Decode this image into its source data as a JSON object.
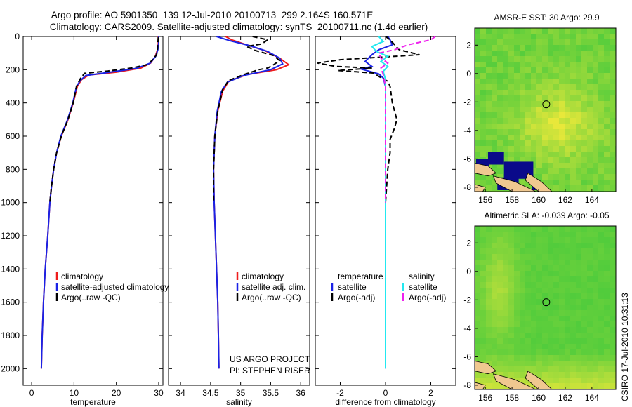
{
  "figure": {
    "title_line1": "Argo profile: AO 5901350_139 12-Jul-2010 20100713_299 2.164S 160.571E",
    "title_line2": "Climatology: CARS2009. Satellite-adjusted climatology: synTS_20100711.nc (1.4d earlier)",
    "credit_line1": "US ARGO PROJECT",
    "credit_line2": "PI: STEPHEN RISER",
    "side_stamp": "CSIRO 17-Jul-2010 10:31:13"
  },
  "colors": {
    "climatology": "#ee1c1c",
    "satellite_adjusted": "#1a22e6",
    "argo": "#000000",
    "satellite_salinity": "#22e8f0",
    "argo_adj_salinity": "#ee22ee",
    "map_ocean": "#3cc83c",
    "map_warm": "#e8e83a",
    "map_deep": "#0a0a8a",
    "map_land": "#f0c890"
  },
  "chart_data": [
    {
      "id": "temperature",
      "type": "line",
      "xlabel": "temperature",
      "ylabel": "",
      "xlim": [
        -2,
        31
      ],
      "ylim": [
        2100,
        0
      ],
      "y_reversed": true,
      "xticks": [
        0,
        10,
        20,
        30
      ],
      "yticks": [
        0,
        200,
        400,
        600,
        800,
        1000,
        1200,
        1400,
        1600,
        1800,
        2000
      ],
      "legend": {
        "location": "lower-right",
        "entries": [
          {
            "label": "climatology",
            "series": "climatology"
          },
          {
            "label": "satellite-adjusted climatology",
            "series": "satellite_adjusted"
          },
          {
            "label": "Argo(..raw -QC)",
            "series": "argo"
          }
        ]
      },
      "series": [
        {
          "name": "climatology",
          "color_key": "climatology",
          "dash": "solid",
          "points": [
            [
              29.9,
              0
            ],
            [
              29.9,
              40
            ],
            [
              29.7,
              80
            ],
            [
              29.2,
              120
            ],
            [
              28.1,
              160
            ],
            [
              25.8,
              190
            ],
            [
              20.0,
              215
            ],
            [
              13.5,
              232
            ],
            [
              11.8,
              260
            ],
            [
              10.8,
              300
            ],
            [
              9.8,
              400
            ],
            [
              8.6,
              500
            ],
            [
              7.0,
              600
            ],
            [
              5.9,
              700
            ],
            [
              5.2,
              800
            ],
            [
              4.7,
              900
            ],
            [
              4.3,
              1000
            ],
            [
              3.8,
              1200
            ],
            [
              3.2,
              1400
            ],
            [
              2.8,
              1600
            ],
            [
              2.5,
              1800
            ],
            [
              2.3,
              2000
            ]
          ]
        },
        {
          "name": "satellite_adjusted",
          "color_key": "satellite_adjusted",
          "dash": "solid",
          "points": [
            [
              30.0,
              0
            ],
            [
              30.0,
              40
            ],
            [
              29.8,
              80
            ],
            [
              29.3,
              120
            ],
            [
              28.0,
              160
            ],
            [
              24.8,
              192
            ],
            [
              18.5,
              215
            ],
            [
              12.8,
              235
            ],
            [
              11.5,
              265
            ],
            [
              10.6,
              300
            ],
            [
              9.7,
              400
            ],
            [
              8.5,
              500
            ],
            [
              6.9,
              600
            ],
            [
              5.9,
              700
            ],
            [
              5.2,
              800
            ],
            [
              4.7,
              900
            ],
            [
              4.3,
              1000
            ],
            [
              3.8,
              1200
            ],
            [
              3.2,
              1400
            ],
            [
              2.8,
              1600
            ],
            [
              2.5,
              1800
            ],
            [
              2.3,
              2000
            ]
          ]
        },
        {
          "name": "argo",
          "color_key": "argo",
          "dash": "dash",
          "points": [
            [
              29.9,
              5
            ],
            [
              29.8,
              40
            ],
            [
              29.7,
              80
            ],
            [
              29.5,
              110
            ],
            [
              28.6,
              140
            ],
            [
              27.3,
              170
            ],
            [
              23.5,
              190
            ],
            [
              18.0,
              208
            ],
            [
              12.5,
              222
            ],
            [
              11.6,
              250
            ],
            [
              10.6,
              300
            ],
            [
              9.8,
              400
            ],
            [
              8.6,
              500
            ],
            [
              7.0,
              600
            ],
            [
              5.9,
              700
            ],
            [
              5.2,
              800
            ],
            [
              4.7,
              900
            ],
            [
              4.3,
              1000
            ]
          ]
        }
      ]
    },
    {
      "id": "salinity",
      "type": "line",
      "xlabel": "salinity",
      "ylabel": "",
      "xlim": [
        33.8,
        36.15
      ],
      "ylim": [
        2100,
        0
      ],
      "y_reversed": true,
      "xticks": [
        34,
        34.5,
        35,
        35.5,
        36
      ],
      "yticks": [],
      "legend": {
        "location": "lower-right",
        "entries": [
          {
            "label": "climatology",
            "series": "climatology"
          },
          {
            "label": "satellite adj. clim.",
            "series": "satellite_adjusted"
          },
          {
            "label": "Argo(..raw -QC)",
            "series": "argo"
          }
        ]
      },
      "series": [
        {
          "name": "climatology",
          "color_key": "climatology",
          "dash": "solid",
          "points": [
            [
              34.75,
              0
            ],
            [
              34.85,
              20
            ],
            [
              35.1,
              50
            ],
            [
              35.4,
              85
            ],
            [
              35.65,
              130
            ],
            [
              35.8,
              170
            ],
            [
              35.6,
              200
            ],
            [
              35.1,
              230
            ],
            [
              34.8,
              270
            ],
            [
              34.7,
              330
            ],
            [
              34.62,
              450
            ],
            [
              34.57,
              600
            ],
            [
              34.55,
              800
            ],
            [
              34.56,
              1000
            ],
            [
              34.58,
              1200
            ],
            [
              34.6,
              1400
            ],
            [
              34.62,
              1600
            ],
            [
              34.63,
              1800
            ],
            [
              34.64,
              2000
            ]
          ]
        },
        {
          "name": "satellite_adjusted",
          "color_key": "satellite_adjusted",
          "dash": "solid",
          "points": [
            [
              34.6,
              0
            ],
            [
              34.82,
              25
            ],
            [
              35.15,
              55
            ],
            [
              35.45,
              90
            ],
            [
              35.65,
              130
            ],
            [
              35.7,
              165
            ],
            [
              35.5,
              200
            ],
            [
              35.05,
              235
            ],
            [
              34.78,
              275
            ],
            [
              34.68,
              330
            ],
            [
              34.61,
              450
            ],
            [
              34.57,
              600
            ],
            [
              34.55,
              800
            ],
            [
              34.56,
              1000
            ],
            [
              34.58,
              1200
            ],
            [
              34.6,
              1400
            ],
            [
              34.62,
              1600
            ],
            [
              34.63,
              1800
            ],
            [
              34.64,
              2000
            ]
          ]
        },
        {
          "name": "argo",
          "color_key": "argo",
          "dash": "dash",
          "points": [
            [
              35.2,
              0
            ],
            [
              35.45,
              20
            ],
            [
              35.35,
              45
            ],
            [
              35.1,
              60
            ],
            [
              35.25,
              85
            ],
            [
              35.55,
              115
            ],
            [
              35.65,
              145
            ],
            [
              35.55,
              170
            ],
            [
              35.45,
              190
            ],
            [
              35.3,
              200
            ],
            [
              35.05,
              230
            ],
            [
              34.8,
              265
            ],
            [
              34.7,
              320
            ],
            [
              34.62,
              450
            ],
            [
              34.57,
              600
            ],
            [
              34.55,
              800
            ],
            [
              34.55,
              1000
            ]
          ]
        }
      ]
    },
    {
      "id": "difference",
      "type": "line",
      "xlabel": "difference from climatology",
      "ylabel": "",
      "xlim": [
        -3.1,
        3.1
      ],
      "ylim": [
        2100,
        0
      ],
      "y_reversed": true,
      "xticks": [
        -2,
        0,
        2
      ],
      "yticks": [],
      "legend": {
        "location": "lower-center",
        "columns": [
          {
            "heading": "temperature",
            "entries": [
              {
                "label": "satellite",
                "series": "temp_satellite"
              },
              {
                "label": "Argo(-adj)",
                "series": "temp_argo"
              }
            ]
          },
          {
            "heading": "salinity",
            "entries": [
              {
                "label": "satellite",
                "series": "sal_satellite"
              },
              {
                "label": "Argo(-adj)",
                "series": "sal_argo"
              }
            ]
          }
        ]
      },
      "series": [
        {
          "name": "temp_satellite",
          "color_key": "satellite_adjusted",
          "dash": "solid",
          "points": [
            [
              0.1,
              0
            ],
            [
              0.2,
              20
            ],
            [
              0.3,
              50
            ],
            [
              -0.3,
              80
            ],
            [
              -0.6,
              110
            ],
            [
              -0.9,
              150
            ],
            [
              -0.6,
              180
            ],
            [
              -1.1,
              195
            ],
            [
              -0.7,
              210
            ],
            [
              -0.3,
              225
            ],
            [
              -0.1,
              250
            ],
            [
              0,
              300
            ],
            [
              0,
              500
            ],
            [
              0,
              1000
            ],
            [
              0,
              1500
            ],
            [
              0,
              2000
            ]
          ]
        },
        {
          "name": "temp_argo",
          "color_key": "argo",
          "dash": "dash",
          "points": [
            [
              0,
              0
            ],
            [
              0.2,
              20
            ],
            [
              0.4,
              50
            ],
            [
              0.6,
              80
            ],
            [
              1.5,
              110
            ],
            [
              -2.0,
              140
            ],
            [
              -3.0,
              160
            ],
            [
              -2.2,
              180
            ],
            [
              -0.6,
              190
            ],
            [
              -2.1,
              205
            ],
            [
              -0.5,
              220
            ],
            [
              -0.3,
              240
            ],
            [
              0.1,
              270
            ],
            [
              0.2,
              300
            ],
            [
              0.3,
              400
            ],
            [
              0.5,
              500
            ],
            [
              0.4,
              550
            ],
            [
              0.2,
              620
            ],
            [
              0.2,
              700
            ],
            [
              0.1,
              800
            ],
            [
              0.05,
              900
            ],
            [
              0,
              1000
            ]
          ]
        },
        {
          "name": "sal_satellite",
          "color_key": "satellite_salinity",
          "dash": "solid",
          "points": [
            [
              -0.3,
              0
            ],
            [
              -0.1,
              30
            ],
            [
              -0.6,
              60
            ],
            [
              -0.4,
              90
            ],
            [
              0.1,
              120
            ],
            [
              -0.2,
              150
            ],
            [
              0.1,
              180
            ],
            [
              -0.1,
              210
            ],
            [
              0,
              260
            ],
            [
              0,
              400
            ],
            [
              0,
              800
            ],
            [
              0,
              1200
            ],
            [
              0,
              1600
            ],
            [
              0,
              2000
            ]
          ]
        },
        {
          "name": "sal_argo",
          "color_key": "argo_adj_salinity",
          "dash": "dash",
          "points": [
            [
              2.2,
              0
            ],
            [
              2.0,
              20
            ],
            [
              1.0,
              50
            ],
            [
              0.4,
              80
            ],
            [
              -0.3,
              100
            ],
            [
              -0.2,
              130
            ],
            [
              0.1,
              160
            ],
            [
              -0.2,
              190
            ],
            [
              -0.1,
              230
            ],
            [
              0,
              300
            ],
            [
              0,
              600
            ],
            [
              0,
              1000
            ]
          ]
        }
      ]
    },
    {
      "id": "map_sst",
      "type": "heatmap",
      "title": "AMSR-E SST: 30 Argo: 29.9",
      "xlim": [
        155.2,
        165.8
      ],
      "ylim": [
        -8.3,
        3.2
      ],
      "xticks": [
        156,
        158,
        160,
        162,
        164
      ],
      "yticks": [
        2,
        0,
        -2,
        -4,
        -6,
        -8
      ],
      "float_position": {
        "lon": 160.571,
        "lat": -2.164
      }
    },
    {
      "id": "map_sla",
      "type": "heatmap",
      "title": "Altimetric SLA: -0.039 Argo: -0.05",
      "xlim": [
        155.2,
        165.8
      ],
      "ylim": [
        -8.3,
        3.2
      ],
      "xticks": [
        156,
        158,
        160,
        162,
        164
      ],
      "yticks": [
        2,
        0,
        -2,
        -4,
        -6,
        -8
      ],
      "float_position": {
        "lon": 160.571,
        "lat": -2.164
      }
    }
  ]
}
